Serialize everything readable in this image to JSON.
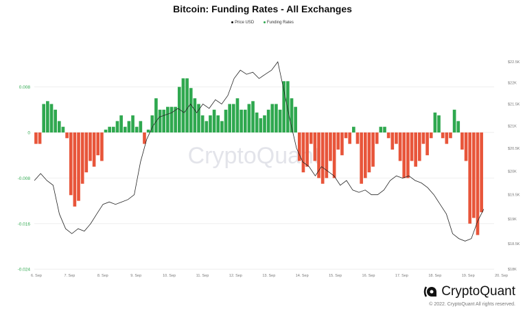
{
  "chart_data": {
    "type": "bar+line",
    "title": "Bitcoin: Funding Rates - All Exchanges",
    "legend": [
      {
        "name": "Price USD",
        "color": "#111111"
      },
      {
        "name": "Funding Rates",
        "color": "#2fa84f"
      }
    ],
    "legend_position": "top-center",
    "watermark": "CryptoQuant",
    "x_ticks": [
      "6. Sep",
      "7. Sep",
      "8. Sep",
      "9. Sep",
      "10. Sep",
      "11. Sep",
      "12. Sep",
      "13. Sep",
      "14. Sep",
      "15. Sep",
      "16. Sep",
      "17. Sep",
      "18. Sep",
      "19. Sep",
      "20. Sep"
    ],
    "x_range_days_from_6_sep": [
      -0.06,
      13.47
    ],
    "left_axis": {
      "ticks": [
        "0.008",
        "0",
        "-0.008",
        "-0.016",
        "-0.024"
      ],
      "tick_values": [
        0.008,
        0,
        -0.008,
        -0.016,
        -0.024
      ],
      "range": [
        -0.024,
        0.0122
      ],
      "color": "#2fa84f"
    },
    "right_axis": {
      "ticks": [
        "$22.5K",
        "$22K",
        "$21.5K",
        "$21K",
        "$20.5K",
        "$20K",
        "$19.5K",
        "$19K",
        "$18.5K",
        "$18K"
      ],
      "tick_values": [
        22500,
        22000,
        21500,
        21000,
        20500,
        20000,
        19500,
        19000,
        18500,
        18000
      ],
      "range": [
        18000,
        22500
      ],
      "scale": "log"
    },
    "positive_color": "#2fa84f",
    "negative_color": "#e8553a",
    "funding_rates": [
      -0.002,
      -0.002,
      0.005,
      0.0055,
      0.005,
      0.004,
      0.002,
      0.001,
      -0.001,
      -0.011,
      -0.013,
      -0.012,
      -0.009,
      -0.007,
      -0.005,
      -0.006,
      -0.004,
      -0.005,
      0.0005,
      0.001,
      0.001,
      0.002,
      0.003,
      0.001,
      0.002,
      0.003,
      0.001,
      0.002,
      -0.002,
      0.0005,
      0.003,
      0.006,
      0.004,
      0.004,
      0.0045,
      0.0045,
      0.0045,
      0.008,
      0.0095,
      0.0095,
      0.0078,
      0.006,
      0.005,
      0.003,
      0.002,
      0.003,
      0.004,
      0.003,
      0.002,
      0.004,
      0.005,
      0.005,
      0.006,
      0.004,
      0.004,
      0.005,
      0.0055,
      0.0035,
      0.0025,
      0.003,
      0.004,
      0.005,
      0.005,
      0.004,
      0.009,
      0.009,
      0.006,
      0.0045,
      -0.005,
      -0.007,
      -0.006,
      -0.002,
      -0.005,
      -0.008,
      -0.009,
      -0.008,
      -0.005,
      -0.008,
      -0.003,
      -0.004,
      -0.001,
      -0.002,
      0.001,
      -0.002,
      -0.009,
      -0.008,
      -0.007,
      -0.006,
      -0.002,
      0.001,
      0.001,
      -0.001,
      -0.003,
      -0.002,
      -0.005,
      -0.008,
      -0.008,
      -0.005,
      -0.006,
      -0.005,
      -0.002,
      -0.004,
      -0.001,
      0.0035,
      0.003,
      -0.001,
      -0.002,
      -0.001,
      0.004,
      0.002,
      -0.003,
      -0.005,
      -0.016,
      -0.015,
      -0.018,
      -0.014
    ],
    "price_usd": [
      19800,
      19950,
      19800,
      19700,
      19100,
      18800,
      18700,
      18800,
      18750,
      18900,
      19100,
      19300,
      19350,
      19300,
      19350,
      19400,
      19500,
      20200,
      20700,
      21000,
      21200,
      21250,
      21300,
      21400,
      21300,
      21500,
      21300,
      21500,
      21400,
      21600,
      21500,
      21700,
      22100,
      22300,
      22200,
      22250,
      22100,
      22200,
      22300,
      22500,
      21800,
      21100,
      20500,
      20200,
      20100,
      19900,
      20100,
      20000,
      19900,
      19700,
      19800,
      19600,
      19550,
      19600,
      19500,
      19500,
      19600,
      19800,
      19900,
      19850,
      19900,
      19800,
      19750,
      19650,
      19500,
      19300,
      19100,
      18700,
      18600,
      18550,
      18600,
      18950,
      19200
    ]
  },
  "footer": {
    "brand": "CryptoQuant",
    "copyright": "© 2022. CryptoQuant All rights reserved."
  }
}
